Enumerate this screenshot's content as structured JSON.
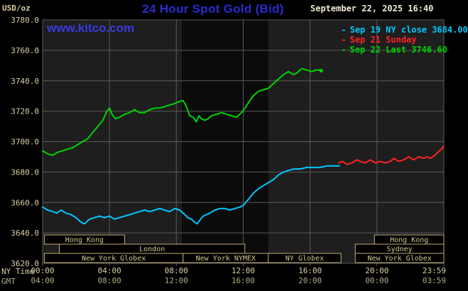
{
  "meta": {
    "units_label": "USD/oz",
    "title": "24 Hour Spot Gold (Bid)",
    "watermark": "www.kitco.com",
    "datetime": "September 22, 2025 16:40"
  },
  "legend": {
    "items": [
      {
        "bullet": "-",
        "label": "Sep 19 NY close 3684.00",
        "color": "#00c8ff"
      },
      {
        "bullet": "-",
        "label": "Sep 21 Sunday",
        "color": "#ff2222"
      },
      {
        "bullet": "-",
        "label": "Sep 22 Last 3746.60",
        "color": "#00d400"
      }
    ]
  },
  "colors": {
    "background": "#000000",
    "plot_background": "#1e1e1e",
    "nymex_shade": "#0b0b0b",
    "grid": "#5a5a5a",
    "axis_text": "#d9cfa3",
    "axis_text_dim": "#b3aa85",
    "session_box_border": "#bfae74",
    "session_box_fill": "#000000",
    "session_text": "#d5c88f",
    "title_blue": "#2a2ad2",
    "watermark_blue": "#3a3ae0",
    "datetime_text": "#f0e9d2"
  },
  "chart_data": {
    "type": "line",
    "title": "24 Hour Spot Gold (Bid)",
    "ylabel": "USD/oz",
    "x_range_hours": [
      0,
      24
    ],
    "y_range": [
      3620,
      3780
    ],
    "y_tick_step": 20,
    "grid": true,
    "legend_position": "top-right",
    "y_tick_labels": [
      "3780.0",
      "3760.0",
      "3740.0",
      "3720.0",
      "3700.0",
      "3680.0",
      "3660.0",
      "3640.0",
      "3620.0"
    ],
    "x_axis_rows": [
      {
        "label": "NY Time",
        "ticks": [
          "00:00",
          "04:00",
          "08:00",
          "12:00",
          "16:00",
          "20:00",
          "23:59"
        ]
      },
      {
        "label": "GMT",
        "ticks": [
          "04:00",
          "08:00",
          "12:00",
          "16:00",
          "20:00",
          "00:00",
          "03:59"
        ]
      }
    ],
    "nymex_shade_hours": [
      8.33,
      13.5
    ],
    "series": [
      {
        "name": "Sep 19 NY close",
        "close": 3684.0,
        "color": "#00c8ff",
        "points": [
          [
            0,
            3657
          ],
          [
            0.3,
            3655
          ],
          [
            0.6,
            3654
          ],
          [
            0.85,
            3653
          ],
          [
            1.1,
            3655
          ],
          [
            1.4,
            3653
          ],
          [
            1.7,
            3652
          ],
          [
            2.0,
            3650
          ],
          [
            2.3,
            3647
          ],
          [
            2.5,
            3646
          ],
          [
            2.8,
            3649
          ],
          [
            3.1,
            3650
          ],
          [
            3.4,
            3651
          ],
          [
            3.7,
            3650
          ],
          [
            4.0,
            3651
          ],
          [
            4.3,
            3649
          ],
          [
            4.6,
            3650
          ],
          [
            4.9,
            3651
          ],
          [
            5.2,
            3652
          ],
          [
            5.5,
            3653
          ],
          [
            5.8,
            3654
          ],
          [
            6.1,
            3655
          ],
          [
            6.4,
            3654
          ],
          [
            6.7,
            3655
          ],
          [
            7.0,
            3656
          ],
          [
            7.3,
            3655
          ],
          [
            7.6,
            3654
          ],
          [
            7.9,
            3656
          ],
          [
            8.2,
            3655
          ],
          [
            8.5,
            3652
          ],
          [
            8.7,
            3650
          ],
          [
            8.9,
            3649
          ],
          [
            9.1,
            3647
          ],
          [
            9.25,
            3646
          ],
          [
            9.45,
            3649
          ],
          [
            9.6,
            3651
          ],
          [
            9.8,
            3652
          ],
          [
            10.0,
            3653
          ],
          [
            10.3,
            3655
          ],
          [
            10.6,
            3656
          ],
          [
            10.9,
            3656
          ],
          [
            11.2,
            3655
          ],
          [
            11.5,
            3656
          ],
          [
            11.8,
            3657
          ],
          [
            12.0,
            3658
          ],
          [
            12.3,
            3662
          ],
          [
            12.6,
            3666
          ],
          [
            12.9,
            3669
          ],
          [
            13.2,
            3671
          ],
          [
            13.5,
            3673
          ],
          [
            13.8,
            3675
          ],
          [
            14.1,
            3678
          ],
          [
            14.4,
            3680
          ],
          [
            14.7,
            3681
          ],
          [
            15.0,
            3682
          ],
          [
            15.4,
            3682
          ],
          [
            15.8,
            3683
          ],
          [
            16.2,
            3683
          ],
          [
            16.6,
            3683
          ],
          [
            17.0,
            3684
          ],
          [
            17.4,
            3684
          ],
          [
            17.75,
            3684
          ]
        ]
      },
      {
        "name": "Sep 21 Sunday",
        "color": "#ff2222",
        "points": [
          [
            17.7,
            3686
          ],
          [
            17.95,
            3687
          ],
          [
            18.2,
            3685
          ],
          [
            18.5,
            3686
          ],
          [
            18.8,
            3688
          ],
          [
            19.0,
            3687
          ],
          [
            19.3,
            3686
          ],
          [
            19.6,
            3688
          ],
          [
            19.9,
            3686
          ],
          [
            20.2,
            3687
          ],
          [
            20.5,
            3686
          ],
          [
            20.8,
            3687
          ],
          [
            21.0,
            3689
          ],
          [
            21.3,
            3687
          ],
          [
            21.6,
            3688
          ],
          [
            21.9,
            3690
          ],
          [
            22.2,
            3688
          ],
          [
            22.5,
            3690
          ],
          [
            22.8,
            3689
          ],
          [
            23.0,
            3690
          ],
          [
            23.2,
            3689
          ],
          [
            23.45,
            3691
          ],
          [
            23.65,
            3693
          ],
          [
            23.85,
            3695
          ],
          [
            23.98,
            3697
          ]
        ]
      },
      {
        "name": "Sep 22 Last",
        "last": 3746.6,
        "color": "#00d400",
        "points": [
          [
            0,
            3694
          ],
          [
            0.3,
            3692
          ],
          [
            0.6,
            3691
          ],
          [
            0.9,
            3693
          ],
          [
            1.2,
            3694
          ],
          [
            1.5,
            3695
          ],
          [
            1.8,
            3696
          ],
          [
            2.1,
            3698
          ],
          [
            2.4,
            3700
          ],
          [
            2.7,
            3702
          ],
          [
            3.0,
            3706
          ],
          [
            3.3,
            3710
          ],
          [
            3.6,
            3714
          ],
          [
            3.85,
            3720
          ],
          [
            4.0,
            3722
          ],
          [
            4.15,
            3718
          ],
          [
            4.35,
            3715
          ],
          [
            4.6,
            3716
          ],
          [
            4.9,
            3718
          ],
          [
            5.2,
            3719
          ],
          [
            5.5,
            3721
          ],
          [
            5.8,
            3719
          ],
          [
            6.1,
            3719
          ],
          [
            6.4,
            3721
          ],
          [
            6.7,
            3722
          ],
          [
            7.0,
            3722
          ],
          [
            7.3,
            3723
          ],
          [
            7.6,
            3724
          ],
          [
            7.9,
            3725
          ],
          [
            8.1,
            3726
          ],
          [
            8.4,
            3727
          ],
          [
            8.6,
            3723
          ],
          [
            8.8,
            3717
          ],
          [
            9.0,
            3716
          ],
          [
            9.2,
            3713
          ],
          [
            9.35,
            3717
          ],
          [
            9.5,
            3715
          ],
          [
            9.7,
            3714
          ],
          [
            9.9,
            3715
          ],
          [
            10.1,
            3717
          ],
          [
            10.4,
            3718
          ],
          [
            10.7,
            3719
          ],
          [
            11.0,
            3718
          ],
          [
            11.3,
            3717
          ],
          [
            11.6,
            3716
          ],
          [
            11.9,
            3719
          ],
          [
            12.1,
            3722
          ],
          [
            12.4,
            3727
          ],
          [
            12.6,
            3730
          ],
          [
            12.9,
            3733
          ],
          [
            13.2,
            3734
          ],
          [
            13.5,
            3735
          ],
          [
            13.8,
            3738
          ],
          [
            14.1,
            3741
          ],
          [
            14.4,
            3744
          ],
          [
            14.7,
            3746
          ],
          [
            15.0,
            3744
          ],
          [
            15.2,
            3745
          ],
          [
            15.5,
            3748
          ],
          [
            15.8,
            3747
          ],
          [
            16.1,
            3746
          ],
          [
            16.35,
            3747
          ],
          [
            16.55,
            3747
          ],
          [
            16.67,
            3746.6
          ]
        ]
      }
    ],
    "sessions": [
      {
        "row": 0,
        "label": "Hong Kong",
        "start_hour": 0.1,
        "end_hour": 4.9
      },
      {
        "row": 0,
        "label": "Hong Kong",
        "start_hour": 19.85,
        "end_hour": 24
      },
      {
        "row": 1,
        "label": "London",
        "start_hour": 1.0,
        "end_hour": 12.1
      },
      {
        "row": 1,
        "label": "Sydney",
        "start_hour": 18.7,
        "end_hour": 24
      },
      {
        "row": 2,
        "label": "New York Globex",
        "start_hour": 0.1,
        "end_hour": 8.4
      },
      {
        "row": 2,
        "label": "New York NYMEX",
        "start_hour": 8.4,
        "end_hour": 13.5
      },
      {
        "row": 2,
        "label": "NY Globex",
        "start_hour": 13.5,
        "end_hour": 17.85
      },
      {
        "row": 2,
        "label": "New York Globex",
        "start_hour": 18.7,
        "end_hour": 24
      }
    ]
  }
}
